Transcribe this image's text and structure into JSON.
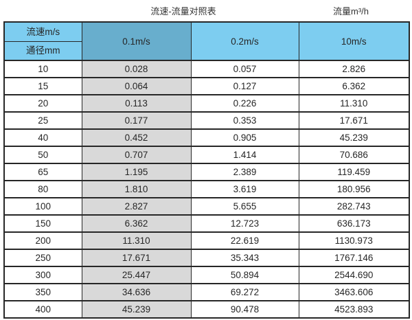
{
  "titles": {
    "main": "流速-流量对照表",
    "unit": "流量m³/h"
  },
  "table": {
    "corner_top": "流速m/s",
    "corner_bottom": "通径mm",
    "velocity_headers": [
      "0.1m/s",
      "0.2m/s",
      "10m/s"
    ],
    "rows": [
      [
        "10",
        "0.028",
        "0.057",
        "2.826"
      ],
      [
        "15",
        "0.064",
        "0.127",
        "6.362"
      ],
      [
        "20",
        "0.113",
        "0.226",
        "11.310"
      ],
      [
        "25",
        "0.177",
        "0.353",
        "17.671"
      ],
      [
        "40",
        "0.452",
        "0.905",
        "45.239"
      ],
      [
        "50",
        "0.707",
        "1.414",
        "70.686"
      ],
      [
        "65",
        "1.195",
        "2.389",
        "119.459"
      ],
      [
        "80",
        "1.810",
        "3.619",
        "180.956"
      ],
      [
        "100",
        "2.827",
        "5.655",
        "282.743"
      ],
      [
        "150",
        "6.362",
        "12.723",
        "636.173"
      ],
      [
        "200",
        "11.310",
        "22.619",
        "1130.973"
      ],
      [
        "250",
        "17.671",
        "35.343",
        "1767.146"
      ],
      [
        "300",
        "25.447",
        "50.894",
        "2544.690"
      ],
      [
        "350",
        "34.636",
        "69.272",
        "3463.606"
      ],
      [
        "400",
        "45.239",
        "90.478",
        "4523.893"
      ]
    ]
  },
  "colors": {
    "header_blue": "#7dcdf0",
    "header_blue_selected": "#68aecd",
    "highlight_column_gray": "#d9d9d9",
    "border": "#262626"
  },
  "chart_data": {
    "type": "table",
    "title": "流速-流量对照表",
    "unit_label": "流量m³/h",
    "columns": [
      "通径mm",
      "0.1m/s",
      "0.2m/s",
      "10m/s"
    ],
    "highlighted_column": "0.1m/s",
    "rows": [
      [
        10,
        0.028,
        0.057,
        2.826
      ],
      [
        15,
        0.064,
        0.127,
        6.362
      ],
      [
        20,
        0.113,
        0.226,
        11.31
      ],
      [
        25,
        0.177,
        0.353,
        17.671
      ],
      [
        40,
        0.452,
        0.905,
        45.239
      ],
      [
        50,
        0.707,
        1.414,
        70.686
      ],
      [
        65,
        1.195,
        2.389,
        119.459
      ],
      [
        80,
        1.81,
        3.619,
        180.956
      ],
      [
        100,
        2.827,
        5.655,
        282.743
      ],
      [
        150,
        6.362,
        12.723,
        636.173
      ],
      [
        200,
        11.31,
        22.619,
        1130.973
      ],
      [
        250,
        17.671,
        35.343,
        1767.146
      ],
      [
        300,
        25.447,
        50.894,
        2544.69
      ],
      [
        350,
        34.636,
        69.272,
        3463.606
      ],
      [
        400,
        45.239,
        90.478,
        4523.893
      ]
    ]
  }
}
